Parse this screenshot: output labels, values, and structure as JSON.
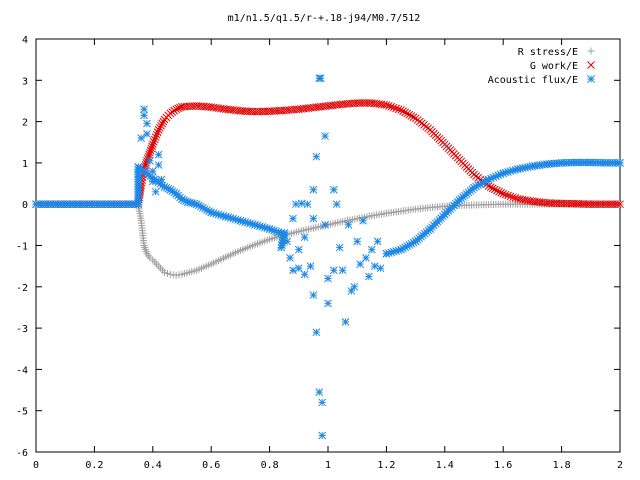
{
  "chart_data": {
    "type": "scatter",
    "title": "m1/n1.5/q1.5/r-+.18-j94/M0.7/512",
    "xlabel": "",
    "ylabel": "",
    "xlim": [
      0,
      2
    ],
    "ylim": [
      -6,
      4
    ],
    "xticks": [
      "0",
      "0.2",
      "0.4",
      "0.6",
      "0.8",
      "1",
      "1.2",
      "1.4",
      "1.6",
      "1.8",
      "2"
    ],
    "yticks": [
      "4",
      "3",
      "2",
      "1",
      "0",
      "-1",
      "-2",
      "-3",
      "-4",
      "-5",
      "-6"
    ],
    "grid": false,
    "legend_position": "top-right",
    "series": [
      {
        "name": "R stress/E",
        "marker": "plus",
        "color": "#a0a0a0",
        "points": [
          [
            0.0,
            0.0
          ],
          [
            0.05,
            0.0
          ],
          [
            0.1,
            0.0
          ],
          [
            0.15,
            0.0
          ],
          [
            0.2,
            0.0
          ],
          [
            0.25,
            0.0
          ],
          [
            0.3,
            0.0
          ],
          [
            0.35,
            0.0
          ],
          [
            0.36,
            -0.4
          ],
          [
            0.365,
            -0.7
          ],
          [
            0.37,
            -1.0
          ],
          [
            0.38,
            -1.2
          ],
          [
            0.39,
            -1.3
          ],
          [
            0.4,
            -1.35
          ],
          [
            0.42,
            -1.5
          ],
          [
            0.44,
            -1.65
          ],
          [
            0.46,
            -1.7
          ],
          [
            0.48,
            -1.72
          ],
          [
            0.5,
            -1.7
          ],
          [
            0.55,
            -1.6
          ],
          [
            0.6,
            -1.45
          ],
          [
            0.65,
            -1.28
          ],
          [
            0.7,
            -1.12
          ],
          [
            0.75,
            -0.98
          ],
          [
            0.8,
            -0.85
          ],
          [
            0.85,
            -0.75
          ],
          [
            0.9,
            -0.66
          ],
          [
            0.95,
            -0.58
          ],
          [
            1.0,
            -0.5
          ],
          [
            1.05,
            -0.42
          ],
          [
            1.1,
            -0.35
          ],
          [
            1.15,
            -0.28
          ],
          [
            1.2,
            -0.22
          ],
          [
            1.25,
            -0.17
          ],
          [
            1.3,
            -0.12
          ],
          [
            1.35,
            -0.08
          ],
          [
            1.4,
            -0.05
          ],
          [
            1.45,
            -0.03
          ],
          [
            1.5,
            -0.02
          ],
          [
            1.55,
            -0.01
          ],
          [
            1.6,
            0.0
          ],
          [
            1.7,
            0.0
          ],
          [
            1.8,
            0.0
          ],
          [
            1.9,
            0.0
          ],
          [
            2.0,
            0.0
          ]
        ]
      },
      {
        "name": "G work/E",
        "marker": "cross",
        "color": "#e00000",
        "points": [
          [
            0.0,
            0.0
          ],
          [
            0.05,
            0.0
          ],
          [
            0.1,
            0.0
          ],
          [
            0.15,
            0.0
          ],
          [
            0.2,
            0.0
          ],
          [
            0.25,
            0.0
          ],
          [
            0.3,
            0.0
          ],
          [
            0.35,
            0.0
          ],
          [
            0.36,
            0.45
          ],
          [
            0.365,
            0.65
          ],
          [
            0.37,
            0.85
          ],
          [
            0.38,
            1.05
          ],
          [
            0.39,
            1.25
          ],
          [
            0.4,
            1.45
          ],
          [
            0.42,
            1.8
          ],
          [
            0.44,
            2.05
          ],
          [
            0.46,
            2.2
          ],
          [
            0.48,
            2.3
          ],
          [
            0.5,
            2.36
          ],
          [
            0.55,
            2.38
          ],
          [
            0.6,
            2.35
          ],
          [
            0.65,
            2.3
          ],
          [
            0.7,
            2.26
          ],
          [
            0.75,
            2.24
          ],
          [
            0.8,
            2.25
          ],
          [
            0.85,
            2.27
          ],
          [
            0.9,
            2.3
          ],
          [
            0.95,
            2.34
          ],
          [
            1.0,
            2.38
          ],
          [
            1.05,
            2.42
          ],
          [
            1.1,
            2.45
          ],
          [
            1.15,
            2.45
          ],
          [
            1.2,
            2.4
          ],
          [
            1.25,
            2.28
          ],
          [
            1.3,
            2.08
          ],
          [
            1.35,
            1.8
          ],
          [
            1.4,
            1.45
          ],
          [
            1.45,
            1.08
          ],
          [
            1.5,
            0.72
          ],
          [
            1.55,
            0.44
          ],
          [
            1.6,
            0.25
          ],
          [
            1.65,
            0.13
          ],
          [
            1.7,
            0.07
          ],
          [
            1.75,
            0.03
          ],
          [
            1.8,
            0.02
          ],
          [
            1.85,
            0.01
          ],
          [
            1.9,
            0.0
          ],
          [
            1.95,
            0.0
          ],
          [
            2.0,
            0.0
          ]
        ]
      },
      {
        "name": "Acoustic flux/E",
        "marker": "star",
        "color": "#1e88e5",
        "points": [
          [
            0.0,
            0.0
          ],
          [
            0.05,
            0.0
          ],
          [
            0.1,
            0.0
          ],
          [
            0.15,
            0.0
          ],
          [
            0.2,
            0.0
          ],
          [
            0.25,
            0.0
          ],
          [
            0.3,
            0.0
          ],
          [
            0.35,
            0.0
          ],
          [
            0.35,
            0.9
          ],
          [
            0.36,
            1.6
          ],
          [
            0.37,
            2.3
          ],
          [
            0.37,
            2.15
          ],
          [
            0.38,
            1.95
          ],
          [
            0.38,
            1.7
          ],
          [
            0.39,
            1.05
          ],
          [
            0.4,
            0.8
          ],
          [
            0.4,
            0.55
          ],
          [
            0.41,
            0.3
          ],
          [
            0.42,
            1.2
          ],
          [
            0.42,
            0.95
          ],
          [
            0.43,
            0.6
          ],
          [
            0.44,
            0.42
          ],
          [
            0.46,
            0.35
          ],
          [
            0.48,
            0.25
          ],
          [
            0.5,
            0.12
          ],
          [
            0.52,
            0.05
          ],
          [
            0.55,
            0.0
          ],
          [
            0.6,
            -0.2
          ],
          [
            0.65,
            -0.3
          ],
          [
            0.7,
            -0.4
          ],
          [
            0.75,
            -0.5
          ],
          [
            0.8,
            -0.6
          ],
          [
            0.83,
            -0.68
          ],
          [
            0.85,
            -0.7
          ],
          [
            0.84,
            -1.05
          ],
          [
            0.85,
            -0.75
          ],
          [
            0.86,
            -0.9
          ],
          [
            0.87,
            -1.3
          ],
          [
            0.88,
            -0.35
          ],
          [
            0.88,
            -1.6
          ],
          [
            0.89,
            0.0
          ],
          [
            0.9,
            -1.1
          ],
          [
            0.9,
            -1.55
          ],
          [
            0.91,
            0.02
          ],
          [
            0.92,
            -1.7
          ],
          [
            0.92,
            -0.8
          ],
          [
            0.93,
            0.0
          ],
          [
            0.94,
            -1.5
          ],
          [
            0.95,
            0.35
          ],
          [
            0.95,
            -0.35
          ],
          [
            0.95,
            -2.2
          ],
          [
            0.96,
            -3.1
          ],
          [
            0.96,
            1.15
          ],
          [
            0.97,
            3.05
          ],
          [
            0.975,
            3.05
          ],
          [
            0.97,
            -4.55
          ],
          [
            0.98,
            -4.8
          ],
          [
            0.98,
            -5.6
          ],
          [
            0.99,
            1.65
          ],
          [
            0.99,
            -0.5
          ],
          [
            1.0,
            -1.8
          ],
          [
            1.0,
            -2.4
          ],
          [
            1.02,
            -1.6
          ],
          [
            1.02,
            0.35
          ],
          [
            1.03,
            0.0
          ],
          [
            1.04,
            -1.05
          ],
          [
            1.05,
            -1.6
          ],
          [
            1.06,
            -2.85
          ],
          [
            1.07,
            -0.5
          ],
          [
            1.08,
            -2.1
          ],
          [
            1.09,
            -2.0
          ],
          [
            1.1,
            -0.9
          ],
          [
            1.11,
            -1.45
          ],
          [
            1.12,
            -0.4
          ],
          [
            1.13,
            -1.3
          ],
          [
            1.14,
            -1.75
          ],
          [
            1.15,
            -1.1
          ],
          [
            1.16,
            -1.5
          ],
          [
            1.17,
            -0.9
          ],
          [
            1.18,
            -1.55
          ],
          [
            1.2,
            -1.2
          ],
          [
            1.25,
            -1.1
          ],
          [
            1.3,
            -0.9
          ],
          [
            1.35,
            -0.6
          ],
          [
            1.4,
            -0.25
          ],
          [
            1.45,
            0.1
          ],
          [
            1.5,
            0.4
          ],
          [
            1.55,
            0.6
          ],
          [
            1.6,
            0.75
          ],
          [
            1.65,
            0.85
          ],
          [
            1.7,
            0.92
          ],
          [
            1.75,
            0.97
          ],
          [
            1.8,
            1.0
          ],
          [
            1.85,
            1.01
          ],
          [
            1.9,
            1.01
          ],
          [
            1.95,
            1.0
          ],
          [
            2.0,
            1.0
          ]
        ]
      }
    ]
  }
}
